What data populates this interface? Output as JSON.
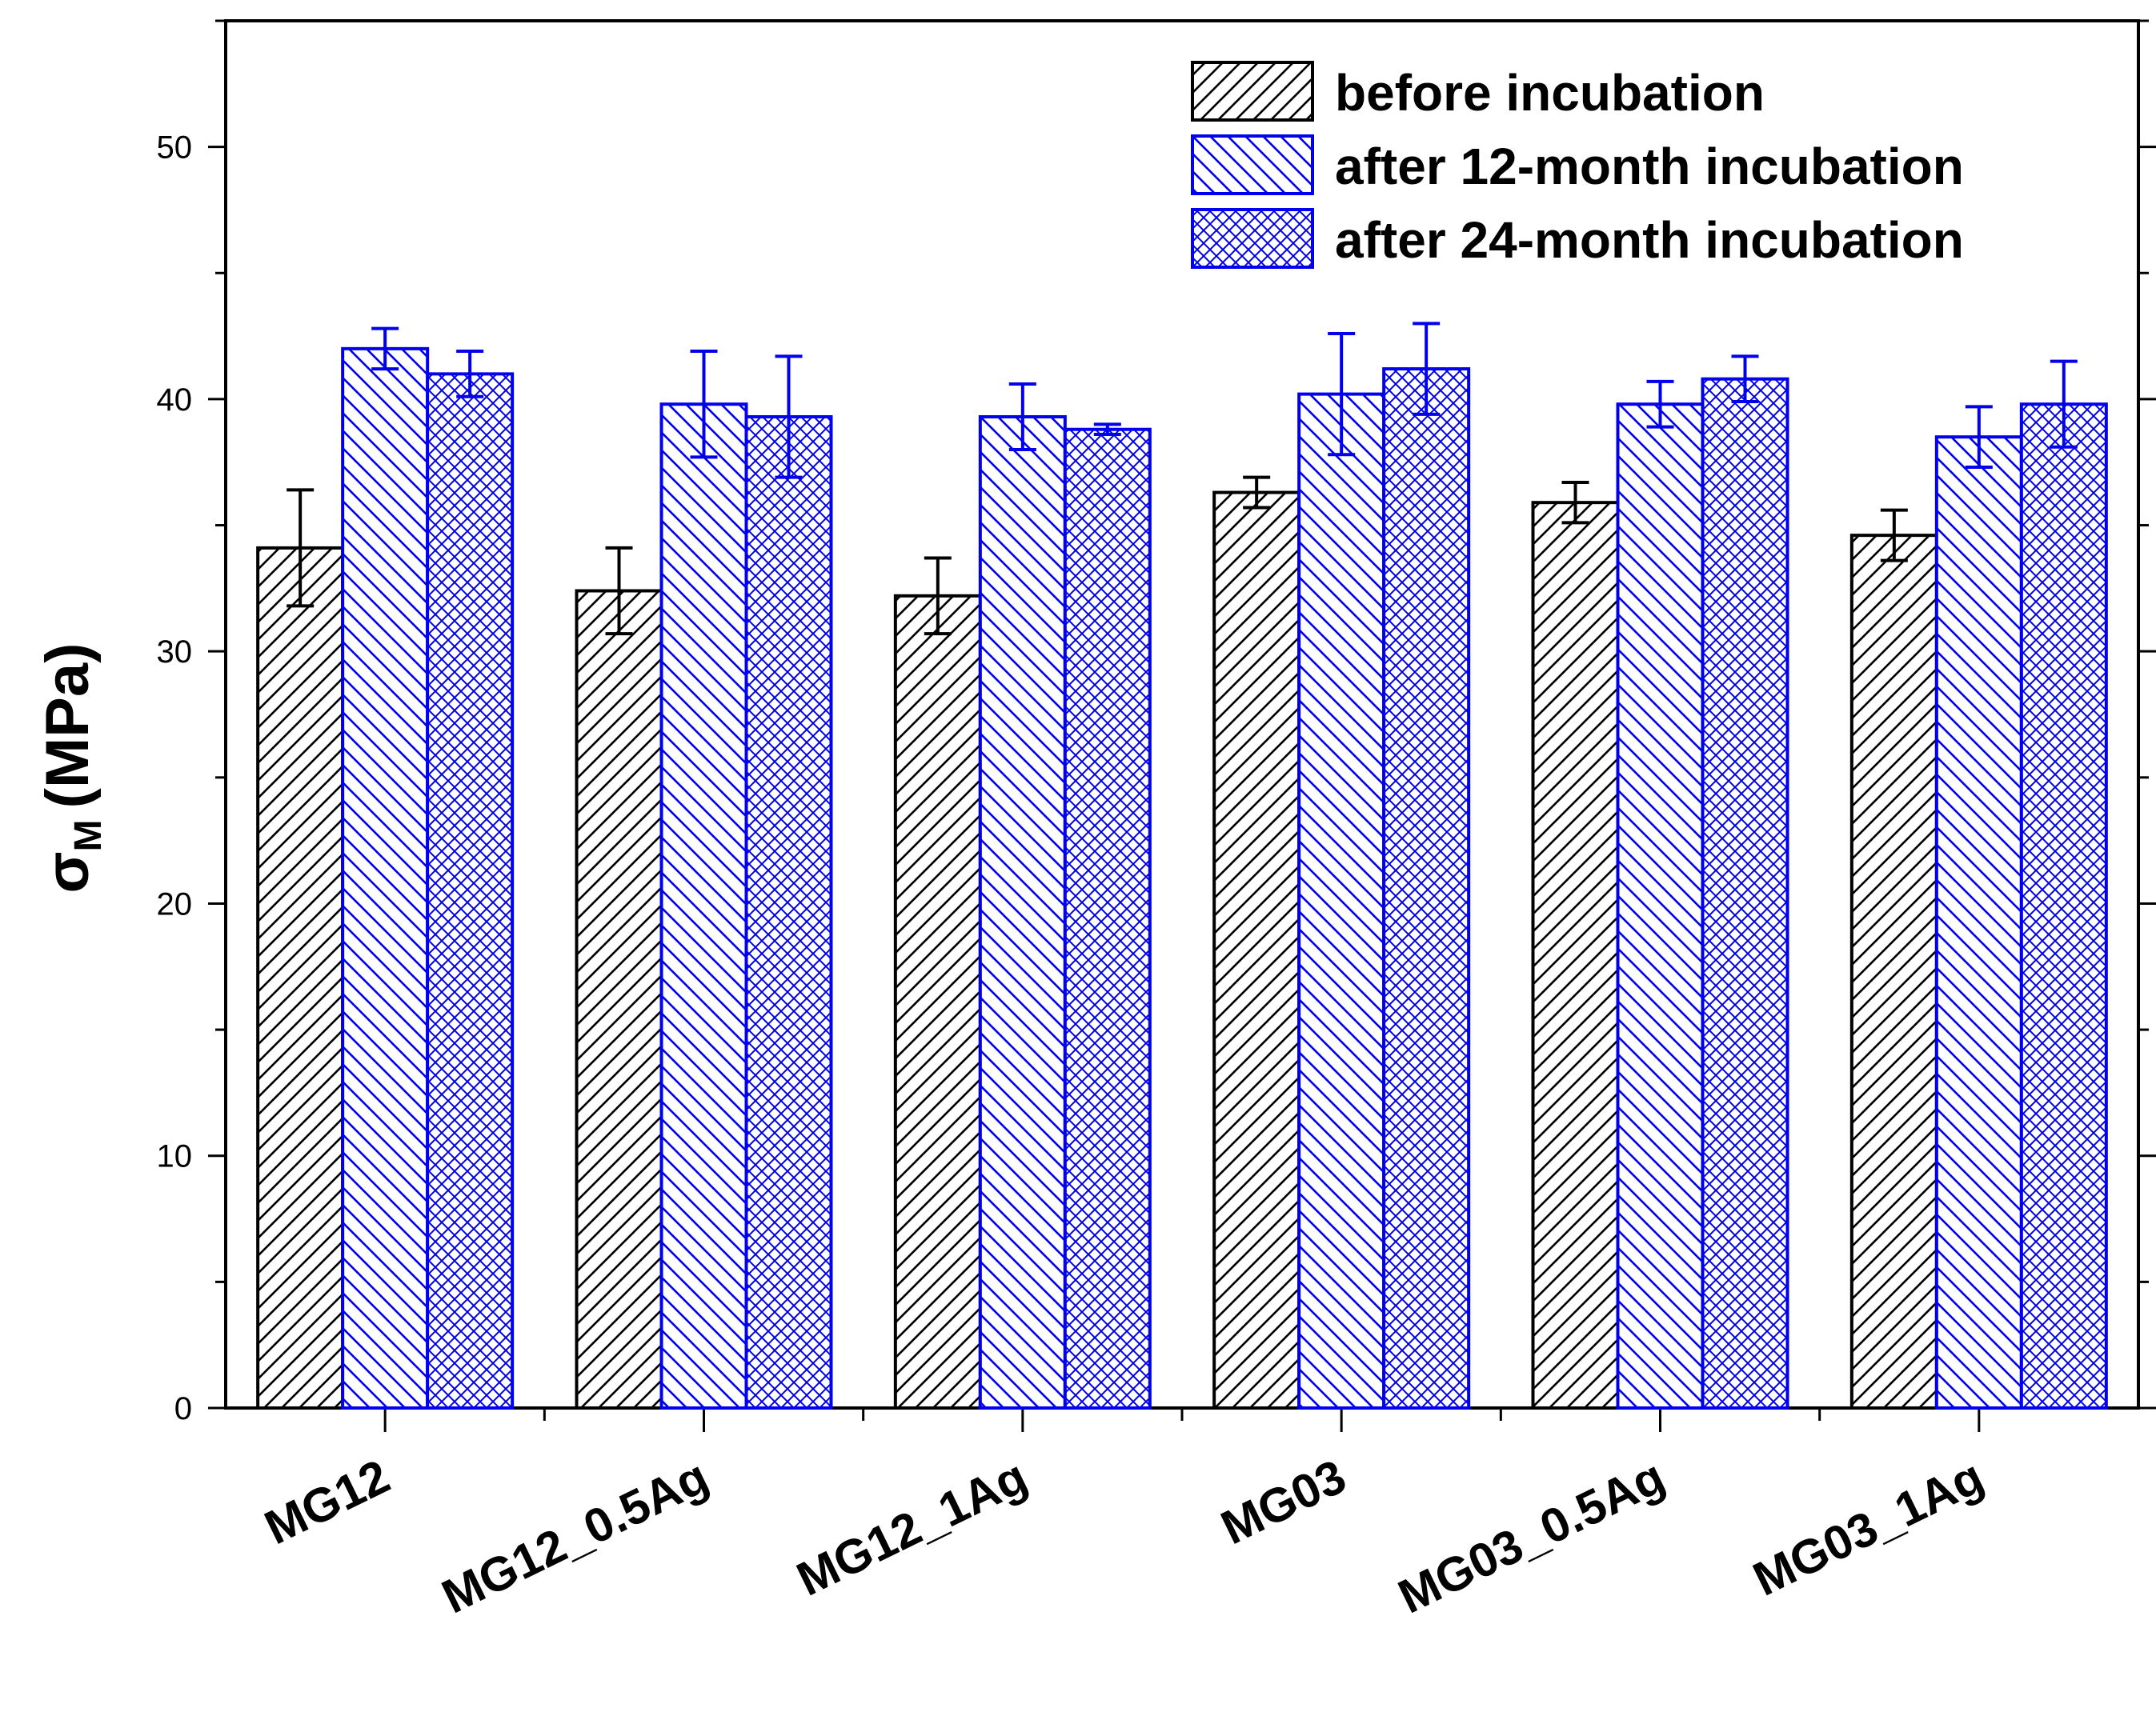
{
  "chart_data": {
    "type": "bar",
    "title": "",
    "xlabel": "",
    "ylabel": {
      "symbol": "σ",
      "subscript": "M",
      "unit": "(MPa)"
    },
    "ylim": [
      0,
      55
    ],
    "yticks": [
      0,
      10,
      20,
      30,
      40,
      50
    ],
    "grid": false,
    "legend_position": "top-right",
    "categories": [
      "MG12",
      "MG12_0.5Ag",
      "MG12_1Ag",
      "MG03",
      "MG03_0.5Ag",
      "MG03_1Ag"
    ],
    "series": [
      {
        "name": "before incubation",
        "color": "#000000",
        "pattern": "diagonal",
        "values": [
          34.1,
          32.4,
          32.2,
          36.3,
          35.9,
          34.6
        ],
        "errors": [
          2.3,
          1.7,
          1.5,
          0.6,
          0.8,
          1.0
        ]
      },
      {
        "name": "after 12-month incubation",
        "color": "#0000ee",
        "pattern": "reverse-diagonal",
        "values": [
          42.0,
          39.8,
          39.3,
          40.2,
          39.8,
          38.5
        ],
        "errors": [
          0.8,
          2.1,
          1.3,
          2.4,
          0.9,
          1.2
        ]
      },
      {
        "name": "after 24-month incubation",
        "color": "#0000ee",
        "pattern": "crosshatch",
        "values": [
          41.0,
          39.3,
          38.8,
          41.2,
          40.8,
          39.8
        ],
        "errors": [
          0.9,
          2.4,
          0.2,
          1.8,
          0.9,
          1.7
        ]
      }
    ]
  }
}
